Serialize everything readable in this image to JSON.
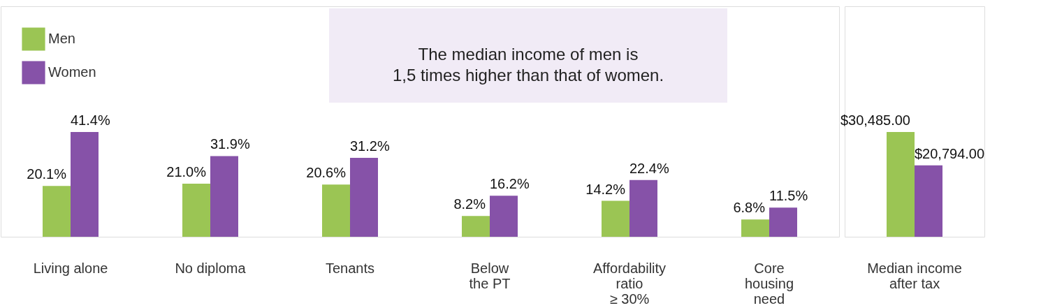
{
  "chart_data": [
    {
      "type": "bar",
      "categories": [
        "Living alone",
        "No diploma",
        "Tenants",
        "Below\nthe PT",
        "Affordability\nratio\n≥ 30%",
        "Core\nhousing\nneed"
      ],
      "series": [
        {
          "name": "Men",
          "color": "#9bc554",
          "values": [
            20.1,
            21.0,
            20.6,
            8.2,
            14.2,
            6.8
          ],
          "value_labels": [
            "20.1%",
            "21.0%",
            "20.6%",
            "8.2%",
            "14.2%",
            "6.8%"
          ]
        },
        {
          "name": "Women",
          "color": "#8652a8",
          "values": [
            41.4,
            31.9,
            31.2,
            16.2,
            22.4,
            11.5
          ],
          "value_labels": [
            "41.4%",
            "31.9%",
            "31.2%",
            "16.2%",
            "22.4%",
            "11.5%"
          ]
        }
      ],
      "legend": "top left",
      "grid": false,
      "annotations": [
        "The median income of men is\n1,5 times higher than that of women."
      ]
    },
    {
      "type": "bar",
      "categories": [
        "Median income\nafter tax"
      ],
      "series": [
        {
          "color": "#9bc554",
          "values": [
            30485.0
          ],
          "value_labels": [
            "$30,485.00"
          ]
        },
        {
          "color": "#8652a8",
          "values": [
            20794.0
          ],
          "value_labels": [
            "$20,794.00"
          ]
        }
      ],
      "legend": false,
      "grid": false
    }
  ]
}
